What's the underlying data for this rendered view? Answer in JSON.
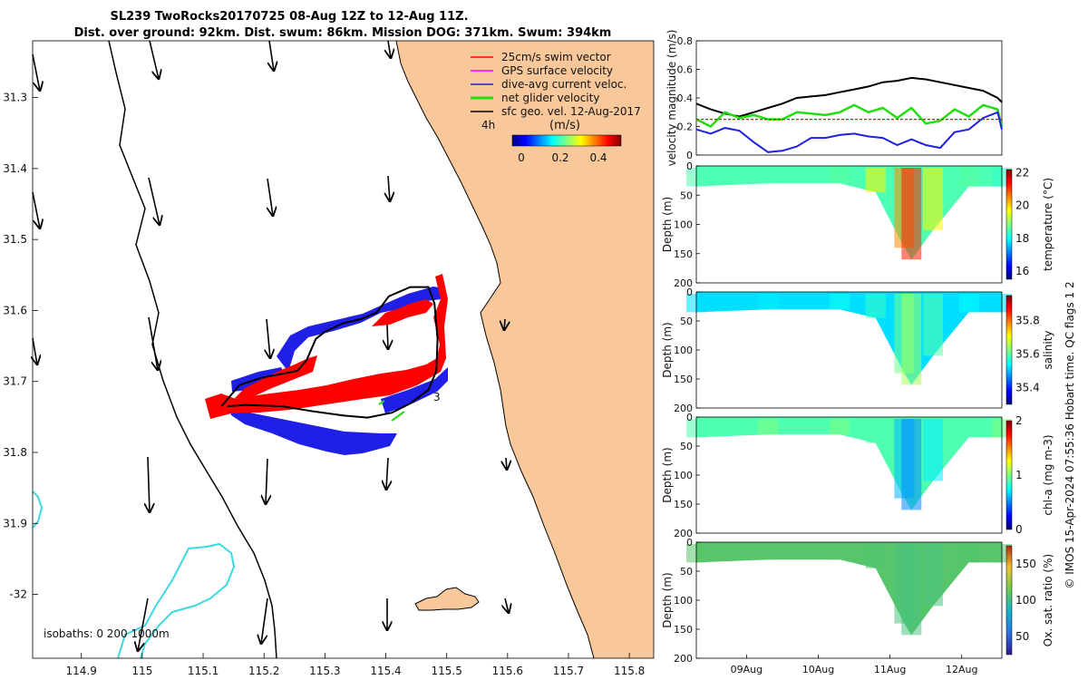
{
  "title": {
    "line1": "SL239 TwoRocks20170725 08-Aug 12Z to 12-Aug 11Z.",
    "line2": "Dist. over ground: 92km. Dist. swum: 86km. Mission DOG: 371km. Swum: 394km"
  },
  "colors": {
    "land": "#f8c89a",
    "isobath_200": "#3dd9e0",
    "coast": "#000000",
    "swim": "#ff0000",
    "gps": "#ff00ff",
    "diveavg": "#1f1fe6",
    "net": "#22dd11",
    "sfcgeo": "#000000"
  },
  "chart_data": [
    {
      "type": "map",
      "x_ticks": [
        "114.9",
        "115",
        "115.1",
        "115.2",
        "115.3",
        "115.4",
        "115.5",
        "115.6",
        "115.7",
        "115.8"
      ],
      "y_ticks": [
        "31.3",
        "31.4",
        "31.5",
        "31.6",
        "31.7",
        "31.8",
        "31.9",
        "-32"
      ],
      "xlim": [
        114.82,
        115.84
      ],
      "ylim": [
        31.22,
        32.09
      ],
      "legend": {
        "items": [
          {
            "label": "25cm/s swim vector",
            "color": "#ff0000"
          },
          {
            "label": "GPS surface velocity",
            "color": "#ff00ff"
          },
          {
            "label": "dive-avg current veloc.",
            "color": "#1f1fe6"
          },
          {
            "label": "net glider velocity",
            "color": "#22dd11"
          },
          {
            "label": "sfc geo. vel. 12-Aug-2017",
            "color": "#000000"
          }
        ],
        "interval_label": "4h",
        "units_label": "(m/s)"
      },
      "colorbar": {
        "ticks": [
          "0",
          "0.2",
          "0.4"
        ],
        "range": [
          0,
          0.5
        ]
      },
      "isobaths_label": "isobaths: 0    200  1000m",
      "glider_label": "3",
      "track": [
        [
          115.14,
          31.735
        ],
        [
          115.17,
          31.733
        ],
        [
          115.23,
          31.735
        ],
        [
          115.28,
          31.742
        ],
        [
          115.33,
          31.748
        ],
        [
          115.37,
          31.751
        ],
        [
          115.41,
          31.744
        ],
        [
          115.44,
          31.731
        ],
        [
          115.47,
          31.712
        ],
        [
          115.483,
          31.685
        ],
        [
          115.485,
          31.64
        ],
        [
          115.48,
          31.59
        ],
        [
          115.47,
          31.567
        ],
        [
          115.44,
          31.567
        ],
        [
          115.405,
          31.58
        ],
        [
          115.385,
          31.603
        ],
        [
          115.36,
          31.612
        ],
        [
          115.33,
          31.618
        ],
        [
          115.3,
          31.63
        ],
        [
          115.285,
          31.64
        ],
        [
          115.27,
          31.67
        ],
        [
          115.255,
          31.685
        ],
        [
          115.195,
          31.695
        ],
        [
          115.16,
          31.705
        ],
        [
          115.13,
          31.735
        ]
      ]
    },
    {
      "type": "line",
      "title": "velocity magnitude",
      "ylabel": "velocity magnitude (m/s)",
      "x_range": [
        8.3,
        12.56
      ],
      "ylim": [
        0,
        0.8
      ],
      "y_ticks": [
        "0",
        "0.2",
        "0.4",
        "0.6",
        "0.8"
      ],
      "x": [
        8.3,
        8.5,
        8.7,
        8.9,
        9.1,
        9.3,
        9.5,
        9.7,
        9.9,
        10.1,
        10.3,
        10.5,
        10.7,
        10.9,
        11.1,
        11.3,
        11.5,
        11.7,
        11.9,
        12.1,
        12.3,
        12.5,
        12.56
      ],
      "series": [
        {
          "name": "sfc geo. vel.",
          "color": "#000000",
          "values": [
            0.36,
            0.32,
            0.29,
            0.27,
            0.3,
            0.33,
            0.36,
            0.4,
            0.41,
            0.42,
            0.44,
            0.46,
            0.48,
            0.51,
            0.52,
            0.54,
            0.53,
            0.51,
            0.49,
            0.47,
            0.45,
            0.4,
            0.37
          ]
        },
        {
          "name": "net glider velocity",
          "color": "#22dd11",
          "values": [
            0.25,
            0.2,
            0.3,
            0.26,
            0.28,
            0.25,
            0.25,
            0.3,
            0.29,
            0.28,
            0.3,
            0.35,
            0.3,
            0.33,
            0.26,
            0.33,
            0.22,
            0.24,
            0.32,
            0.27,
            0.35,
            0.32,
            0.2
          ]
        },
        {
          "name": "dive-avg current veloc.",
          "color": "#1f1fe6",
          "values": [
            0.18,
            0.15,
            0.19,
            0.17,
            0.09,
            0.02,
            0.03,
            0.06,
            0.12,
            0.12,
            0.14,
            0.15,
            0.13,
            0.12,
            0.07,
            0.11,
            0.07,
            0.05,
            0.16,
            0.18,
            0.26,
            0.3,
            0.18
          ]
        },
        {
          "name": "swim reference",
          "color": "#ff0000",
          "values": [
            0.25,
            0.25,
            0.25,
            0.25,
            0.25,
            0.25,
            0.25,
            0.25,
            0.25,
            0.25,
            0.25,
            0.25,
            0.25,
            0.25,
            0.25,
            0.25,
            0.25,
            0.25,
            0.25,
            0.25,
            0.25,
            0.25,
            0.25
          ]
        }
      ]
    },
    {
      "type": "heatmap",
      "variable": "temperature",
      "ylabel": "Depth (m)",
      "cbar_label": "temperature (°C)",
      "cbar_range": [
        15.5,
        22.2
      ],
      "cbar_ticks": [
        "16",
        "18",
        "20",
        "22"
      ],
      "ylim": [
        200,
        0
      ],
      "y_ticks": [
        "0",
        "50",
        "100",
        "150",
        "200"
      ],
      "profile": [
        {
          "day": 8.3,
          "depth": 35,
          "value": 18.5
        },
        {
          "day": 9.3,
          "depth": 30,
          "value": 18.5
        },
        {
          "day": 10.3,
          "depth": 30,
          "value": 18.6
        },
        {
          "day": 10.8,
          "depth": 45,
          "value": 19.8
        },
        {
          "day": 11.2,
          "depth": 140,
          "value": 20.5
        },
        {
          "day": 11.3,
          "depth": 160,
          "value": 21.2
        },
        {
          "day": 11.6,
          "depth": 110,
          "value": 19.8
        },
        {
          "day": 12.1,
          "depth": 35,
          "value": 18.6
        },
        {
          "day": 12.56,
          "depth": 35,
          "value": 18.3
        }
      ]
    },
    {
      "type": "heatmap",
      "variable": "salinity",
      "ylabel": "Depth (m)",
      "cbar_label": "salinity",
      "cbar_range": [
        35.3,
        35.95
      ],
      "cbar_ticks": [
        "35.4",
        "35.6",
        "35.8"
      ],
      "ylim": [
        200,
        0
      ],
      "y_ticks": [
        "0",
        "50",
        "100",
        "150",
        "200"
      ],
      "profile": [
        {
          "day": 8.3,
          "depth": 35,
          "value": 35.52
        },
        {
          "day": 9.3,
          "depth": 30,
          "value": 35.53
        },
        {
          "day": 10.3,
          "depth": 30,
          "value": 35.55
        },
        {
          "day": 10.8,
          "depth": 45,
          "value": 35.58
        },
        {
          "day": 11.2,
          "depth": 140,
          "value": 35.62
        },
        {
          "day": 11.3,
          "depth": 160,
          "value": 35.65
        },
        {
          "day": 11.6,
          "depth": 110,
          "value": 35.6
        },
        {
          "day": 12.1,
          "depth": 35,
          "value": 35.54
        },
        {
          "day": 12.56,
          "depth": 35,
          "value": 35.52
        }
      ]
    },
    {
      "type": "heatmap",
      "variable": "chl-a",
      "ylabel": "Depth (m)",
      "cbar_label": "chl-a (mg m-3)",
      "cbar_range": [
        0,
        2
      ],
      "cbar_ticks": [
        "0",
        "1",
        "2"
      ],
      "ylim": [
        200,
        0
      ],
      "y_ticks": [
        "0",
        "50",
        "100",
        "150",
        "200"
      ],
      "profile": [
        {
          "day": 8.3,
          "depth": 35,
          "value": 0.9
        },
        {
          "day": 9.3,
          "depth": 30,
          "value": 1.0
        },
        {
          "day": 10.3,
          "depth": 30,
          "value": 1.0
        },
        {
          "day": 10.8,
          "depth": 45,
          "value": 0.9
        },
        {
          "day": 11.2,
          "depth": 140,
          "value": 0.6
        },
        {
          "day": 11.3,
          "depth": 160,
          "value": 0.5
        },
        {
          "day": 11.6,
          "depth": 110,
          "value": 0.7
        },
        {
          "day": 12.1,
          "depth": 35,
          "value": 0.9
        },
        {
          "day": 12.56,
          "depth": 35,
          "value": 1.0
        }
      ]
    },
    {
      "type": "heatmap",
      "variable": "oxygen saturation",
      "ylabel": "Depth (m)",
      "cbar_label": "Ox. sat. ratio (%)",
      "cbar_range": [
        25,
        175
      ],
      "cbar_ticks": [
        "50",
        "100",
        "150"
      ],
      "ylim": [
        200,
        0
      ],
      "y_ticks": [
        "0",
        "50",
        "100",
        "150",
        "200"
      ],
      "x_ticks": [
        "09Aug",
        "10Aug",
        "11Aug",
        "12Aug"
      ],
      "profile": [
        {
          "day": 8.3,
          "depth": 35,
          "value": 108
        },
        {
          "day": 9.3,
          "depth": 30,
          "value": 108
        },
        {
          "day": 10.3,
          "depth": 30,
          "value": 108
        },
        {
          "day": 10.8,
          "depth": 45,
          "value": 106
        },
        {
          "day": 11.2,
          "depth": 140,
          "value": 104
        },
        {
          "day": 11.3,
          "depth": 160,
          "value": 103
        },
        {
          "day": 11.6,
          "depth": 110,
          "value": 104
        },
        {
          "day": 12.1,
          "depth": 35,
          "value": 107
        },
        {
          "day": 12.56,
          "depth": 35,
          "value": 108
        }
      ]
    }
  ],
  "footer": {
    "side_text": "© IMOS 15-Apr-2024 07:55:36 Hobart time. QC flags 1  2"
  }
}
